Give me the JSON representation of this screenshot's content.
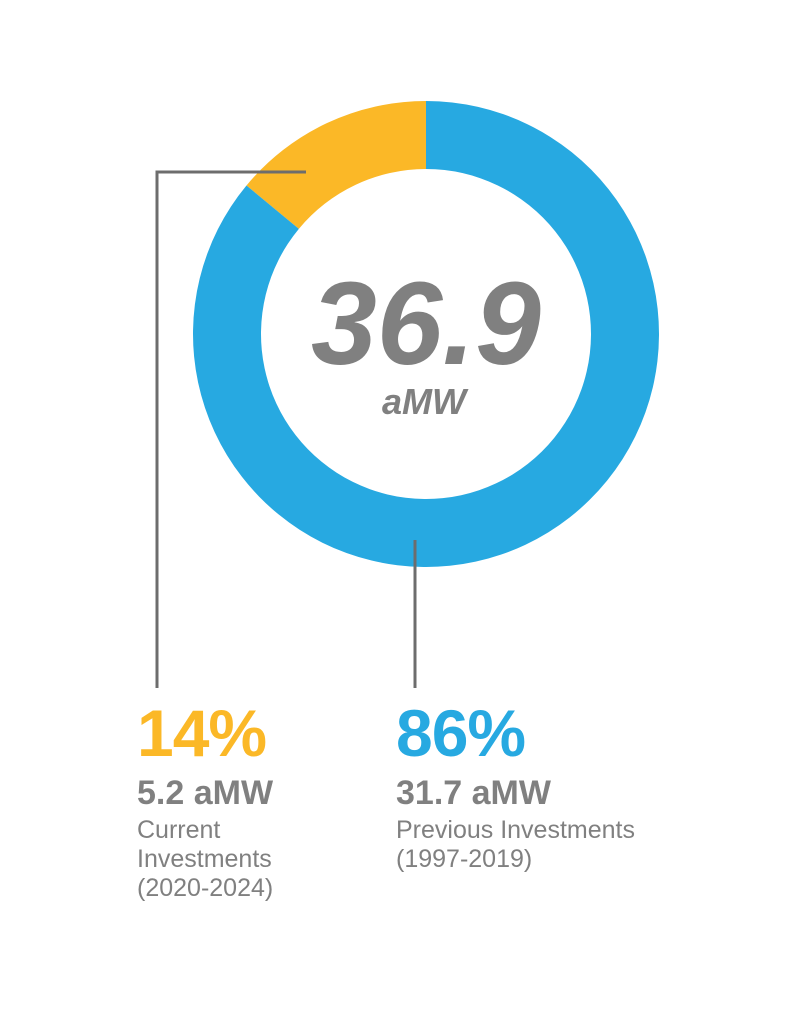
{
  "chart_data": {
    "type": "pie",
    "variant": "donut",
    "center_value": "36.9",
    "center_unit": "aMW",
    "total": 36.9,
    "slices": [
      {
        "key": "current",
        "percent_label": "14%",
        "percent": 14,
        "value": 5.2,
        "value_label": "5.2 aMW",
        "description_lines": [
          "Current",
          "Investments",
          "(2020-2024)"
        ],
        "color": "#FBB827"
      },
      {
        "key": "previous",
        "percent_label": "86%",
        "percent": 86,
        "value": 31.7,
        "value_label": "31.7 aMW",
        "description_lines": [
          "Previous Investments",
          "(1997-2019)"
        ],
        "color": "#27A9E1"
      }
    ],
    "leader_line_color": "#6d6d6d"
  }
}
